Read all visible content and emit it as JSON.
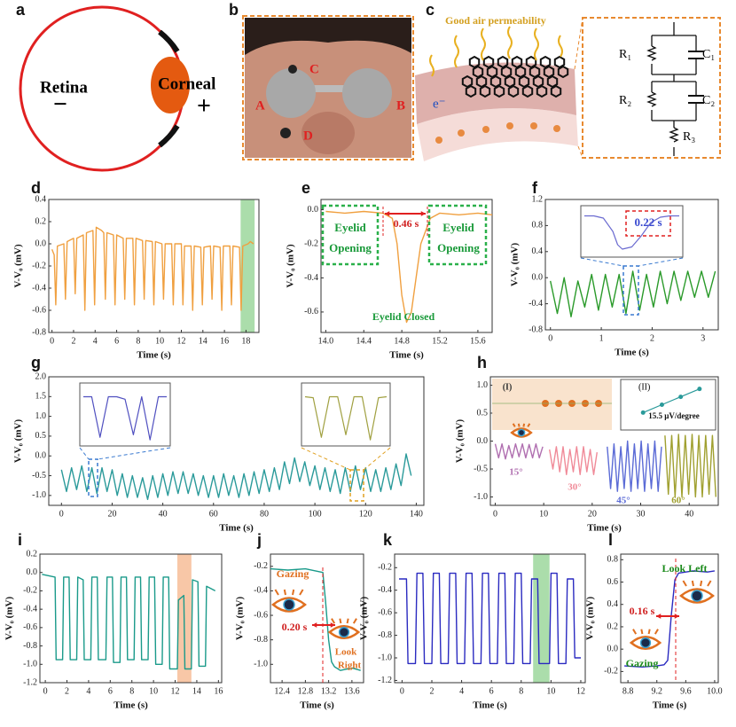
{
  "diagrams": [
    {
      "label": "a",
      "retina": "Retina",
      "minus": "−",
      "cornea": "Corneal",
      "plus": "+"
    },
    {
      "label": "b",
      "electrodes": [
        "C",
        "A",
        "B",
        "D"
      ]
    },
    {
      "label": "c",
      "title": "Good air permeability",
      "electron": "e⁻",
      "circuit": [
        "R₁",
        "C₁",
        "R₂",
        "C₂",
        "R₃"
      ]
    }
  ],
  "chart_data": [
    {
      "type": "line",
      "label": "d",
      "xlabel": "Time (s)",
      "ylabel": "V-V₀ (mV)",
      "color": "#f0a040",
      "xlim": [
        -0.3,
        19.2
      ],
      "ylim": [
        -0.8,
        0.4
      ],
      "xticks": [
        0,
        2,
        4,
        6,
        8,
        10,
        12,
        14,
        16,
        18
      ],
      "yticks": [
        -0.8,
        -0.6,
        -0.4,
        -0.2,
        {
          "value": 0,
          "label": "0.0"
        },
        0.2,
        0.4
      ],
      "highlight": [
        17.5,
        18.8
      ],
      "highlight_color": "#8fd18f",
      "x": [
        0,
        0.2,
        0.35,
        0.5,
        1.1,
        1.25,
        1.4,
        2.0,
        2.15,
        2.3,
        2.9,
        3.05,
        3.2,
        3.8,
        3.95,
        4.1,
        4.6,
        4.8,
        4.95,
        5.1,
        5.7,
        5.85,
        6.0,
        6.6,
        6.75,
        6.9,
        7.5,
        7.65,
        7.8,
        8.4,
        8.55,
        8.7,
        9.3,
        9.45,
        9.6,
        10.2,
        10.35,
        10.5,
        11.1,
        11.25,
        11.4,
        12.0,
        12.15,
        12.3,
        12.9,
        13.05,
        13.2,
        13.8,
        13.95,
        14.1,
        14.7,
        14.85,
        15.0,
        15.6,
        15.75,
        15.9,
        16.5,
        16.65,
        16.8,
        17.4,
        17.55,
        17.7,
        18.2,
        18.4,
        18.7
      ],
      "values": [
        -0.05,
        -0.1,
        -0.55,
        -0.02,
        0.0,
        -0.5,
        0.02,
        0.05,
        -0.45,
        0.05,
        0.08,
        -0.6,
        0.1,
        0.12,
        -0.55,
        0.15,
        0.12,
        0.1,
        -0.5,
        0.1,
        0.08,
        -0.55,
        0.08,
        0.05,
        -0.5,
        0.05,
        0.05,
        -0.55,
        0.05,
        0.03,
        -0.5,
        0.03,
        0.02,
        -0.55,
        0.02,
        0.0,
        -0.5,
        0.0,
        0.0,
        -0.55,
        0.0,
        0.0,
        -0.55,
        -0.02,
        -0.02,
        -0.6,
        -0.02,
        -0.03,
        -0.55,
        -0.03,
        -0.02,
        -0.5,
        -0.02,
        -0.03,
        -0.6,
        -0.02,
        -0.02,
        -0.55,
        -0.02,
        -0.03,
        -0.6,
        -0.02,
        0.0,
        0.02,
        0.0
      ]
    },
    {
      "type": "line",
      "label": "e",
      "xlabel": "Time (s)",
      "ylabel": "V-V₀ (mV)",
      "color": "#f0a040",
      "xlim": [
        13.95,
        15.75
      ],
      "ylim": [
        -0.72,
        0.06
      ],
      "xticks": [
        {
          "value": 14.0,
          "label": "14.0"
        },
        14.4,
        14.8,
        15.2,
        15.6
      ],
      "yticks": [
        {
          "value": 0,
          "label": "0.0"
        },
        -0.2,
        -0.4,
        -0.6
      ],
      "x": [
        14.0,
        14.2,
        14.4,
        14.6,
        14.7,
        14.75,
        14.8,
        14.85,
        14.9,
        14.95,
        15.0,
        15.1,
        15.2,
        15.4,
        15.6,
        15.75
      ],
      "values": [
        -0.01,
        -0.02,
        -0.01,
        -0.02,
        -0.05,
        -0.2,
        -0.5,
        -0.66,
        -0.6,
        -0.4,
        -0.2,
        -0.05,
        -0.02,
        -0.03,
        -0.02,
        -0.03
      ],
      "annotations": [
        "Eyelid",
        "Opening",
        "Eyelid",
        "Opening",
        "0.46 s",
        "Eyelid Closed"
      ]
    },
    {
      "type": "line",
      "label": "f",
      "xlabel": "Time (s)",
      "ylabel": "V-V₀ (mV)",
      "color": "#2a9a2a",
      "xlim": [
        -0.1,
        3.3
      ],
      "ylim": [
        -0.8,
        1.2
      ],
      "xticks": [
        0,
        1,
        2,
        3
      ],
      "yticks": [
        -0.8,
        -0.4,
        {
          "value": 0,
          "label": "0.0"
        },
        0.4,
        0.8,
        1.2
      ],
      "x": [
        0,
        0.135,
        0.27,
        0.405,
        0.54,
        0.675,
        0.81,
        0.945,
        1.08,
        1.215,
        1.35,
        1.485,
        1.62,
        1.755,
        1.89,
        2.025,
        2.16,
        2.295,
        2.43,
        2.565,
        2.7,
        2.835,
        2.97,
        3.105,
        3.24
      ],
      "values": [
        -0.05,
        -0.55,
        0.0,
        -0.6,
        -0.05,
        -0.45,
        0.05,
        -0.5,
        0.05,
        -0.45,
        0.05,
        -0.55,
        0.1,
        -0.5,
        0.05,
        -0.45,
        0.1,
        -0.4,
        0.1,
        -0.35,
        0.1,
        -0.3,
        0.1,
        -0.3,
        0.1
      ],
      "insets": [
        {
          "color": "#6a6ad0",
          "xlim": [
            0,
            1
          ],
          "ylim": [
            -0.9,
            0.1
          ],
          "x": [
            0,
            0.1,
            0.2,
            0.3,
            0.35,
            0.4,
            0.5,
            0.6,
            0.7,
            0.8,
            0.9,
            1.0
          ],
          "values": [
            -0.05,
            -0.05,
            -0.1,
            -0.4,
            -0.7,
            -0.8,
            -0.75,
            -0.5,
            -0.2,
            -0.08,
            -0.05,
            -0.05
          ],
          "annotation": "0.22 s"
        }
      ]
    },
    {
      "type": "line",
      "label": "g",
      "xlabel": "Time (s)",
      "ylabel": "V-V₀ (mV)",
      "color": "#2a9a9a",
      "xlim": [
        -5,
        143
      ],
      "ylim": [
        -1.25,
        2.0
      ],
      "xticks": [
        0,
        20,
        40,
        60,
        80,
        100,
        120,
        140
      ],
      "yticks": [
        {
          "value": -1,
          "label": "-1.0"
        },
        -0.5,
        {
          "value": 0,
          "label": "0.0"
        },
        0.5,
        {
          "value": 1,
          "label": "1.0"
        },
        1.5,
        {
          "value": 2,
          "label": "2.0"
        }
      ],
      "x": [
        0,
        2,
        4,
        6,
        8,
        10,
        12,
        14,
        16,
        18,
        20,
        22,
        24,
        26,
        28,
        30,
        32,
        34,
        36,
        38,
        40,
        42,
        44,
        46,
        48,
        50,
        52,
        54,
        56,
        58,
        60,
        62,
        64,
        66,
        68,
        70,
        72,
        74,
        76,
        78,
        80,
        82,
        84,
        86,
        88,
        90,
        92,
        94,
        96,
        98,
        100,
        102,
        104,
        106,
        108,
        110,
        112,
        114,
        116,
        118,
        120,
        122,
        124,
        126,
        128,
        130,
        132,
        134,
        136,
        138
      ],
      "values": [
        -0.35,
        -0.9,
        -0.3,
        -0.85,
        -0.25,
        -0.9,
        -0.3,
        -0.95,
        -0.3,
        -0.9,
        -0.35,
        -1.0,
        -0.45,
        -1.05,
        -0.5,
        -1.05,
        -0.55,
        -1.1,
        -0.5,
        -1.05,
        -0.45,
        -1.0,
        -0.4,
        -0.95,
        -0.4,
        -0.95,
        -0.45,
        -1.0,
        -0.5,
        -1.05,
        -0.5,
        -1.05,
        -0.45,
        -1.0,
        -0.5,
        -1.05,
        -0.45,
        -1.0,
        -0.4,
        -0.95,
        -0.35,
        -0.9,
        -0.3,
        -0.85,
        -0.15,
        -0.7,
        -0.05,
        -0.65,
        -0.15,
        -0.75,
        -0.25,
        -0.85,
        -0.3,
        -0.9,
        -0.35,
        -0.95,
        -0.3,
        -0.9,
        -0.25,
        -0.85,
        -0.3,
        -0.9,
        -0.35,
        -0.9,
        -0.3,
        -0.85,
        -0.2,
        -0.75,
        0.05,
        -0.5
      ],
      "insets": [
        {
          "color": "#5050c0",
          "xlim": [
            0,
            10
          ],
          "ylim": [
            -1.0,
            0.1
          ],
          "x": [
            0,
            1,
            2,
            3,
            4,
            5,
            6,
            7,
            8,
            9,
            10
          ],
          "values": [
            -0.1,
            -0.1,
            -0.9,
            -0.1,
            -0.1,
            -0.15,
            -0.85,
            -0.1,
            -0.95,
            -0.1,
            -0.1
          ]
        },
        {
          "color": "#a0a040",
          "xlim": [
            0,
            10
          ],
          "ylim": [
            -1.0,
            0.1
          ],
          "x": [
            0,
            1,
            2,
            3,
            4,
            5,
            6,
            7,
            8,
            9,
            10
          ],
          "values": [
            -0.1,
            -0.12,
            -0.9,
            -0.1,
            -0.1,
            -0.85,
            -0.1,
            -0.1,
            -0.95,
            -0.12,
            -0.1
          ]
        }
      ]
    },
    {
      "type": "line",
      "label": "h",
      "xlabel": "Time (s)",
      "ylabel": "V-V₀ (mV)",
      "xlim": [
        -1,
        46
      ],
      "ylim": [
        -1.15,
        1.15
      ],
      "xticks": [
        0,
        10,
        20,
        30,
        40
      ],
      "yticks": [
        {
          "value": -1,
          "label": "-1.0"
        },
        -0.5,
        {
          "value": 0,
          "label": "0.0"
        },
        0.5,
        {
          "value": 1,
          "label": "1.0"
        }
      ],
      "series": [
        {
          "name": "15°",
          "color": "#b06fb0",
          "x": [
            0,
            0.7,
            1.4,
            2.1,
            2.8,
            3.5,
            4.2,
            4.9,
            5.6,
            6.3,
            7.0,
            7.7,
            8.4,
            9.1,
            9.8
          ],
          "values": [
            -0.05,
            -0.3,
            -0.05,
            -0.32,
            -0.08,
            -0.3,
            -0.05,
            -0.28,
            -0.05,
            -0.3,
            -0.06,
            -0.3,
            -0.05,
            -0.3,
            -0.1
          ]
        },
        {
          "name": "30°",
          "color": "#f08a98",
          "x": [
            11.2,
            11.9,
            12.6,
            13.3,
            14.0,
            14.7,
            15.4,
            16.1,
            16.8,
            17.5,
            18.2,
            18.9,
            19.6,
            20.3,
            21.0
          ],
          "values": [
            -0.15,
            -0.5,
            -0.1,
            -0.55,
            -0.1,
            -0.6,
            -0.15,
            -0.55,
            -0.1,
            -0.6,
            -0.1,
            -0.55,
            -0.15,
            -0.6,
            -0.2
          ]
        },
        {
          "name": "45°",
          "color": "#5b6bd6",
          "x": [
            23.1,
            23.8,
            24.5,
            25.2,
            25.9,
            26.6,
            27.3,
            28.0,
            28.7,
            29.4,
            30.1,
            30.8,
            31.5,
            32.2,
            32.9,
            33.6,
            34.3
          ],
          "values": [
            -0.1,
            -0.85,
            -0.05,
            -0.9,
            -0.1,
            -0.85,
            0.0,
            -0.9,
            -0.05,
            -0.85,
            0.0,
            -0.9,
            -0.05,
            -0.85,
            0.0,
            -0.9,
            -0.1
          ]
        },
        {
          "name": "60°",
          "color": "#a0a030",
          "x": [
            35.0,
            35.7,
            36.4,
            37.1,
            37.8,
            38.5,
            39.2,
            39.9,
            40.6,
            41.3,
            42.0,
            42.7,
            43.4,
            44.1,
            44.8,
            45.5
          ],
          "values": [
            0.1,
            -0.95,
            0.1,
            -1.0,
            0.12,
            -1.0,
            0.1,
            -0.95,
            0.12,
            -1.0,
            0.1,
            -1.0,
            0.1,
            -0.95,
            0.1,
            -1.0
          ]
        }
      ],
      "insets": [
        {
          "label": "(II)",
          "color": "#2a9a9a",
          "xlim": [
            0,
            70
          ],
          "ylim": [
            0,
            1.1
          ],
          "x": [
            15,
            30,
            45,
            60
          ],
          "values": [
            0.35,
            0.55,
            0.75,
            0.95
          ],
          "annotation": "15.5 μV/degree"
        }
      ],
      "annotations": [
        "(I)"
      ]
    },
    {
      "type": "line",
      "label": "i",
      "xlabel": "Time (s)",
      "ylabel": "V-V₀ (mV)",
      "color": "#1a9a8a",
      "xlim": [
        -0.5,
        16.3
      ],
      "ylim": [
        -1.2,
        0.2
      ],
      "xticks": [
        0,
        2,
        4,
        6,
        8,
        10,
        12,
        14,
        16
      ],
      "yticks": [
        0.2,
        {
          "value": 0,
          "label": "0.0"
        },
        -0.2,
        -0.4,
        -0.6,
        -0.8,
        {
          "value": -1,
          "label": "-1.0"
        },
        -1.2
      ],
      "highlight": [
        12.2,
        13.5
      ],
      "highlight_color": "#f5b48a",
      "x": [
        -0.3,
        0.9,
        1.0,
        1.6,
        1.7,
        2.2,
        2.3,
        2.9,
        3.0,
        3.5,
        3.6,
        4.2,
        4.3,
        4.8,
        4.9,
        5.6,
        5.7,
        6.2,
        6.3,
        6.9,
        7.0,
        7.5,
        7.6,
        8.2,
        8.3,
        8.8,
        8.9,
        9.5,
        9.6,
        10.1,
        10.2,
        10.8,
        10.9,
        11.4,
        11.5,
        12.2,
        12.3,
        12.8,
        12.9,
        13.5,
        13.6,
        14.1,
        14.2,
        14.8,
        14.9,
        15.7
      ],
      "values": [
        -0.02,
        -0.05,
        -0.95,
        -0.95,
        -0.05,
        -0.05,
        -0.95,
        -0.95,
        -0.05,
        -0.08,
        -0.95,
        -0.95,
        -0.05,
        -0.05,
        -0.95,
        -0.95,
        -0.05,
        -0.05,
        -0.98,
        -0.98,
        -0.05,
        -0.05,
        -0.95,
        -0.95,
        -0.05,
        -0.05,
        -0.95,
        -0.95,
        -0.05,
        -0.05,
        -1.0,
        -1.0,
        -0.05,
        -0.05,
        -1.05,
        -1.05,
        -0.3,
        -0.25,
        -1.05,
        -1.05,
        -0.08,
        -0.1,
        -1.02,
        -1.02,
        -0.15,
        -0.2
      ]
    },
    {
      "type": "line",
      "label": "j",
      "xlabel": "Time (s)",
      "ylabel": "V-V₀ (mV)",
      "color": "#1a9a8a",
      "xlim": [
        12.2,
        13.8
      ],
      "ylim": [
        -1.15,
        -0.1
      ],
      "xticks": [
        12.4,
        12.8,
        13.2,
        13.6
      ],
      "yticks": [
        -0.2,
        -0.4,
        -0.6,
        -0.8,
        {
          "value": -1,
          "label": "-1.0"
        }
      ],
      "x": [
        12.2,
        12.5,
        12.8,
        13.0,
        13.1,
        13.15,
        13.2,
        13.25,
        13.3,
        13.4,
        13.6,
        13.75
      ],
      "values": [
        -0.22,
        -0.23,
        -0.22,
        -0.24,
        -0.25,
        -0.5,
        -0.8,
        -0.98,
        -1.02,
        -1.05,
        -1.03,
        -1.05
      ],
      "annotations": [
        "Gazing",
        "0.20 s",
        "Look",
        "Right"
      ]
    },
    {
      "type": "line",
      "label": "k",
      "xlabel": "Time (s)",
      "ylabel": "V-V₀ (mV)",
      "color": "#2a2ac0",
      "xlim": [
        -0.5,
        12.3
      ],
      "ylim": [
        -1.22,
        -0.08
      ],
      "xticks": [
        0,
        2,
        4,
        6,
        8,
        10,
        12
      ],
      "yticks": [
        -0.2,
        -0.4,
        -0.6,
        -0.8,
        {
          "value": -1,
          "label": "-1.0"
        },
        -1.2
      ],
      "highlight": [
        8.8,
        9.9
      ],
      "highlight_color": "#8fd18f",
      "x": [
        -0.2,
        0.3,
        0.4,
        0.9,
        1.0,
        1.4,
        1.5,
        2.0,
        2.1,
        2.5,
        2.6,
        3.1,
        3.2,
        3.6,
        3.7,
        4.2,
        4.3,
        4.7,
        4.8,
        5.3,
        5.4,
        5.8,
        5.9,
        6.4,
        6.5,
        6.9,
        7.0,
        7.5,
        7.6,
        8.0,
        8.1,
        8.6,
        8.7,
        9.1,
        9.2,
        9.9,
        10.0,
        10.4,
        10.5,
        11.0,
        11.1,
        11.5,
        11.6,
        12.0
      ],
      "values": [
        -0.3,
        -0.3,
        -1.05,
        -1.05,
        -0.25,
        -0.25,
        -1.05,
        -1.05,
        -0.25,
        -0.25,
        -1.05,
        -1.05,
        -0.25,
        -0.25,
        -1.05,
        -1.05,
        -0.25,
        -0.25,
        -1.05,
        -1.05,
        -0.25,
        -0.25,
        -1.05,
        -1.05,
        -0.25,
        -0.25,
        -1.05,
        -1.05,
        -0.25,
        -0.25,
        -1.05,
        -1.05,
        -0.3,
        -0.3,
        -1.05,
        -1.05,
        -0.25,
        -0.25,
        -1.05,
        -1.05,
        -0.3,
        -0.3,
        -1.0,
        -1.0
      ]
    },
    {
      "type": "line",
      "label": "l",
      "xlabel": "Time (s)",
      "ylabel": "V-V₀ (mV)",
      "color": "#2a2ac0",
      "xlim": [
        8.7,
        10.05
      ],
      "ylim": [
        -0.3,
        0.85
      ],
      "xticks": [
        8.8,
        9.2,
        9.6,
        {
          "value": 10,
          "label": "10.0"
        }
      ],
      "yticks": [
        0.8,
        0.6,
        0.4,
        0.2,
        {
          "value": 0,
          "label": "0.0"
        },
        -0.2
      ],
      "x": [
        8.75,
        9.0,
        9.2,
        9.3,
        9.35,
        9.4,
        9.45,
        9.5,
        9.7,
        9.9,
        10.0
      ],
      "values": [
        -0.15,
        -0.16,
        -0.15,
        -0.14,
        -0.1,
        0.3,
        0.62,
        0.68,
        0.7,
        0.69,
        0.7
      ],
      "annotations": [
        "Look Left",
        "0.16 s",
        "Gazing"
      ]
    }
  ]
}
